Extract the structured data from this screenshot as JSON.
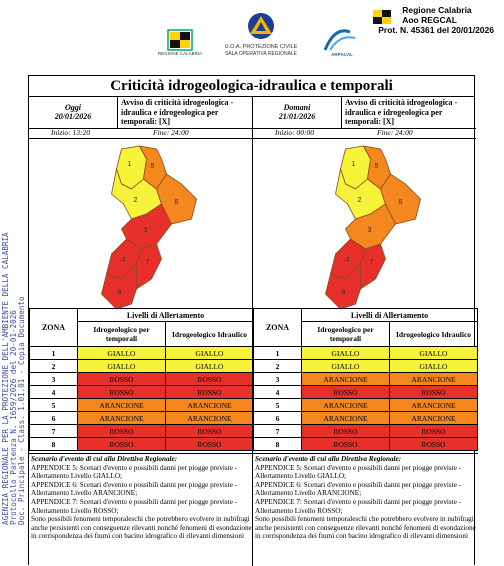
{
  "header": {
    "logos": [
      "REGIONE CALABRIA",
      "U.O.A. PROTEZIONE CIVILE",
      "SALA OPERATIVA REGIONALE",
      "ARPACAL"
    ],
    "stamp": [
      "Regione Calabria",
      "Aoo REGCAL",
      "Prot. N. 45361 del 20/01/2026"
    ]
  },
  "side_stamp": [
    "AGENZIA REGIONALE PER LA PROTEZIONE DELL'AMBIENTE DELLA CALABRIA",
    "Protocollo Partenza N. 1659/2026 del 20-01-2026",
    "Doc. Principale - Class. 1.01.01 - Copia Documento"
  ],
  "title": "Criticità idrogeologica-idraulica e temporali",
  "days": [
    {
      "day": "Oggi",
      "date": "20/01/2026",
      "notice": "Avviso di criticità idrogeologica - idraulica e idrogeologica per temporali: [X]",
      "start": "Inizio: 13:20",
      "end": "Fine: 24:00",
      "table": {
        "heading": "Livelli di Allertamento",
        "zone_header": "ZONA",
        "columns": [
          "Idrogeologico per temporali",
          "Idrogeologico Idraulico"
        ],
        "rows": [
          {
            "zone": "1",
            "cells": [
              {
                "text": "GIALLO",
                "color": "#f7f23a"
              },
              {
                "text": "GIALLO",
                "color": "#f7f23a"
              }
            ]
          },
          {
            "zone": "2",
            "cells": [
              {
                "text": "GIALLO",
                "color": "#f7f23a"
              },
              {
                "text": "GIALLO",
                "color": "#f7f23a"
              }
            ]
          },
          {
            "zone": "3",
            "cells": [
              {
                "text": "ROSSO",
                "color": "#e8302a"
              },
              {
                "text": "ROSSO",
                "color": "#e8302a"
              }
            ]
          },
          {
            "zone": "4",
            "cells": [
              {
                "text": "ROSSO",
                "color": "#e8302a"
              },
              {
                "text": "ROSSO",
                "color": "#e8302a"
              }
            ]
          },
          {
            "zone": "5",
            "cells": [
              {
                "text": "ARANCIONE",
                "color": "#f5871f"
              },
              {
                "text": "ARANCIONE",
                "color": "#f5871f"
              }
            ]
          },
          {
            "zone": "6",
            "cells": [
              {
                "text": "ARANCIONE",
                "color": "#f5871f"
              },
              {
                "text": "ARANCIONE",
                "color": "#f5871f"
              }
            ]
          },
          {
            "zone": "7",
            "cells": [
              {
                "text": "ROSSO",
                "color": "#e8302a"
              },
              {
                "text": "ROSSO",
                "color": "#e8302a"
              }
            ]
          },
          {
            "zone": "8",
            "cells": [
              {
                "text": "ROSSO",
                "color": "#e8302a"
              },
              {
                "text": "ROSSO",
                "color": "#e8302a"
              }
            ]
          }
        ]
      },
      "scenario": {
        "heading": "Scenario d'evento di cui alla Direttiva Regionale:",
        "lines": [
          "APPENDICE 5: Scenari d'evento e possibili danni per piogge previste - Allertamento Livello GIALLO;",
          "APPENDICE 6: Scenari d'evento e possibili danni per piogge previste - Allertamento Livello ARANCIONE;",
          "APPENDICE 7: Scenari d'evento e possibili danni per piogge previste - Allertamento Livello ROSSO;",
          "Sono possibili fenomeni temporaleschi che potrebbero evolvere in nubifragi anche persistenti con conseguenze rilevanti nonché fenomeni di esondazione in corrispondenza dei fiumi con bacino idrografico di rilevanti dimensioni"
        ]
      }
    },
    {
      "day": "Domani",
      "date": "21/01/2026",
      "notice": "Avviso di criticità idrogeologica - idraulica e idrogeologica per temporali: [X]",
      "start": "Inizio: 00:00",
      "end": "Fine: 24:00",
      "table": {
        "heading": "Livelli di Allertamento",
        "zone_header": "ZONA",
        "columns": [
          "Idrogeologico per temporali",
          "Idrogeologico Idraulico"
        ],
        "rows": [
          {
            "zone": "1",
            "cells": [
              {
                "text": "GIALLO",
                "color": "#f7f23a"
              },
              {
                "text": "GIALLO",
                "color": "#f7f23a"
              }
            ]
          },
          {
            "zone": "2",
            "cells": [
              {
                "text": "GIALLO",
                "color": "#f7f23a"
              },
              {
                "text": "GIALLO",
                "color": "#f7f23a"
              }
            ]
          },
          {
            "zone": "3",
            "cells": [
              {
                "text": "ARANCIONE",
                "color": "#f5871f"
              },
              {
                "text": "ARANCIONE",
                "color": "#f5871f"
              }
            ]
          },
          {
            "zone": "4",
            "cells": [
              {
                "text": "ROSSO",
                "color": "#e8302a"
              },
              {
                "text": "ROSSO",
                "color": "#e8302a"
              }
            ]
          },
          {
            "zone": "5",
            "cells": [
              {
                "text": "ARANCIONE",
                "color": "#f5871f"
              },
              {
                "text": "ARANCIONE",
                "color": "#f5871f"
              }
            ]
          },
          {
            "zone": "6",
            "cells": [
              {
                "text": "ARANCIONE",
                "color": "#f5871f"
              },
              {
                "text": "ARANCIONE",
                "color": "#f5871f"
              }
            ]
          },
          {
            "zone": "7",
            "cells": [
              {
                "text": "ROSSO",
                "color": "#e8302a"
              },
              {
                "text": "ROSSO",
                "color": "#e8302a"
              }
            ]
          },
          {
            "zone": "8",
            "cells": [
              {
                "text": "ROSSO",
                "color": "#e8302a"
              },
              {
                "text": "ROSSO",
                "color": "#e8302a"
              }
            ]
          }
        ]
      },
      "scenario": {
        "heading": "Scenario d'evento di cui alla Direttiva Regionale:",
        "lines": [
          "APPENDICE 5: Scenari d'evento e possibili danni per piogge previste - Allertamento Livello GIALLO;",
          "APPENDICE 6: Scenari d'evento e possibili danni per piogge previste - Allertamento Livello ARANCIONE;",
          "APPENDICE 7: Scenari d'evento e possibili danni per piogge previste - Allertamento Livello ROSSO;",
          "Sono possibili fenomeni temporaleschi che potrebbero evolvere in nubifragi anche persistenti con conseguenze rilevanti nonché fenomeni di esondazione in corrispondenza dei fiumi con bacino idrografico di rilevanti dimensioni"
        ]
      }
    }
  ]
}
